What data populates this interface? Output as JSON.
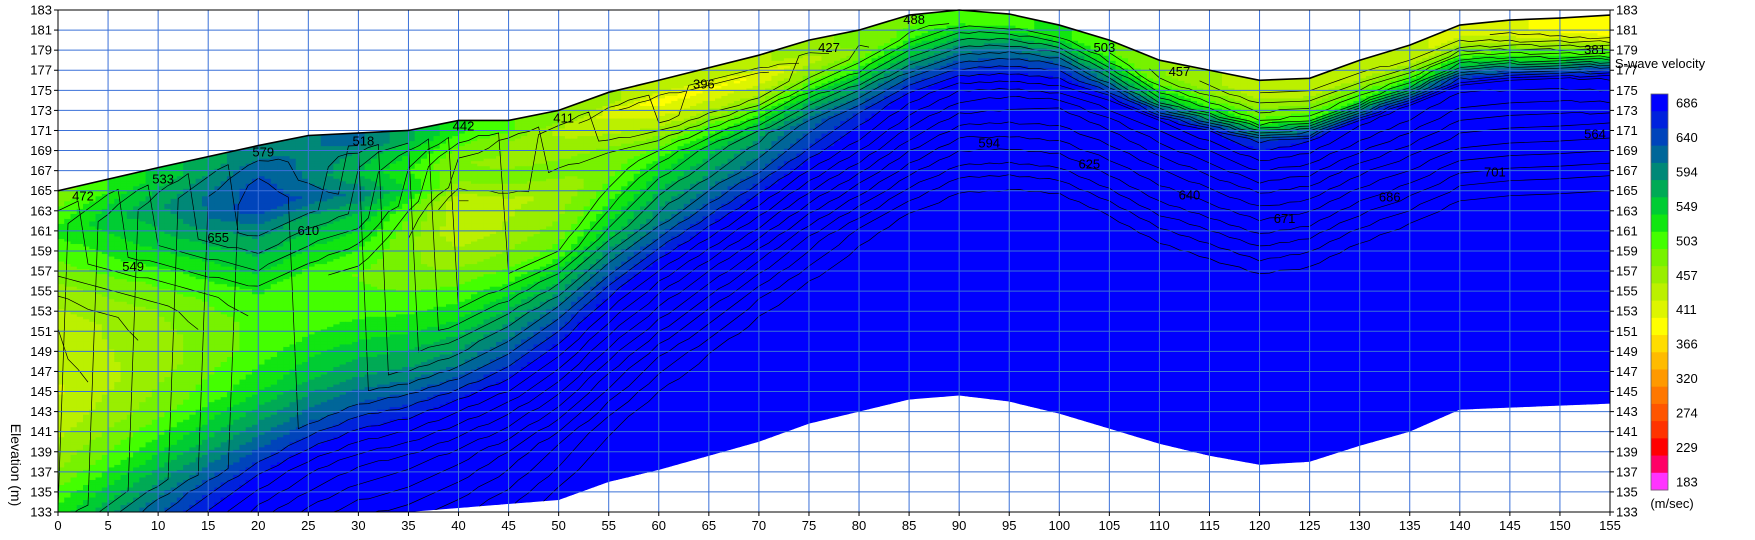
{
  "chart_data": {
    "type": "heatmap",
    "xlabel": "",
    "ylabel": "Elevation (m)",
    "xlim": [
      0,
      155
    ],
    "ylim": [
      133,
      183
    ],
    "x_ticks": [
      0,
      5,
      10,
      15,
      20,
      25,
      30,
      35,
      40,
      45,
      50,
      55,
      60,
      65,
      70,
      75,
      80,
      85,
      90,
      95,
      100,
      105,
      110,
      115,
      120,
      125,
      130,
      135,
      140,
      145,
      150,
      155
    ],
    "y_ticks": [
      133,
      135,
      137,
      139,
      141,
      143,
      145,
      147,
      149,
      151,
      153,
      155,
      157,
      159,
      161,
      163,
      165,
      167,
      169,
      171,
      173,
      175,
      177,
      179,
      181,
      183
    ],
    "grid": true,
    "surface_profile": [
      {
        "x": 0,
        "y": 165
      },
      {
        "x": 10,
        "y": 167.3
      },
      {
        "x": 20,
        "y": 169.5
      },
      {
        "x": 25,
        "y": 170.5
      },
      {
        "x": 35,
        "y": 171
      },
      {
        "x": 40,
        "y": 172
      },
      {
        "x": 45,
        "y": 172
      },
      {
        "x": 50,
        "y": 173
      },
      {
        "x": 55,
        "y": 174.8
      },
      {
        "x": 60,
        "y": 176
      },
      {
        "x": 70,
        "y": 178.5
      },
      {
        "x": 75,
        "y": 180
      },
      {
        "x": 80,
        "y": 181
      },
      {
        "x": 85,
        "y": 182.5
      },
      {
        "x": 90,
        "y": 183
      },
      {
        "x": 95,
        "y": 182.6
      },
      {
        "x": 100,
        "y": 181.5
      },
      {
        "x": 105,
        "y": 180
      },
      {
        "x": 110,
        "y": 178
      },
      {
        "x": 115,
        "y": 177
      },
      {
        "x": 120,
        "y": 176
      },
      {
        "x": 125,
        "y": 176.2
      },
      {
        "x": 130,
        "y": 178
      },
      {
        "x": 135,
        "y": 179.5
      },
      {
        "x": 140,
        "y": 181.5
      },
      {
        "x": 145,
        "y": 182
      },
      {
        "x": 150,
        "y": 182.2
      },
      {
        "x": 155,
        "y": 182.5
      }
    ],
    "bottom_profile": [
      {
        "x": 0,
        "y": 133
      },
      {
        "x": 35,
        "y": 133
      },
      {
        "x": 40,
        "y": 133.4
      },
      {
        "x": 50,
        "y": 134.2
      },
      {
        "x": 55,
        "y": 136
      },
      {
        "x": 60,
        "y": 137.2
      },
      {
        "x": 70,
        "y": 140
      },
      {
        "x": 75,
        "y": 141.8
      },
      {
        "x": 80,
        "y": 143
      },
      {
        "x": 85,
        "y": 144.2
      },
      {
        "x": 90,
        "y": 144.6
      },
      {
        "x": 95,
        "y": 144
      },
      {
        "x": 100,
        "y": 142.8
      },
      {
        "x": 105,
        "y": 141.3
      },
      {
        "x": 110,
        "y": 139.8
      },
      {
        "x": 115,
        "y": 138.6
      },
      {
        "x": 120,
        "y": 137.7
      },
      {
        "x": 125,
        "y": 138
      },
      {
        "x": 130,
        "y": 139.6
      },
      {
        "x": 135,
        "y": 141
      },
      {
        "x": 140,
        "y": 143.2
      },
      {
        "x": 145,
        "y": 143.4
      },
      {
        "x": 150,
        "y": 143.6
      },
      {
        "x": 155,
        "y": 143.8
      }
    ],
    "velocity_field": {
      "x": [
        0,
        10,
        20,
        30,
        40,
        50,
        60,
        70,
        80,
        90,
        100,
        110,
        120,
        130,
        140,
        150,
        155
      ],
      "rows": [
        {
          "z": -1,
          "v": [
            480,
            545,
            600,
            610,
            520,
            470,
            430,
            440,
            480,
            500,
            520,
            470,
            430,
            430,
            420,
            390,
            380
          ]
        },
        {
          "z": -2,
          "v": [
            500,
            560,
            620,
            580,
            500,
            440,
            390,
            400,
            470,
            540,
            560,
            480,
            450,
            450,
            450,
            420,
            400
          ]
        },
        {
          "z": -4,
          "v": [
            520,
            580,
            640,
            560,
            470,
            460,
            430,
            450,
            520,
            600,
            640,
            560,
            500,
            520,
            560,
            530,
            520
          ]
        },
        {
          "z": -6,
          "v": [
            500,
            560,
            650,
            600,
            470,
            480,
            480,
            520,
            590,
            660,
            700,
            700,
            650,
            690,
            710,
            700,
            690
          ]
        },
        {
          "z": -8,
          "v": [
            480,
            540,
            600,
            560,
            430,
            450,
            520,
            580,
            650,
            720,
            760,
            740,
            700,
            720,
            740,
            740,
            730
          ]
        },
        {
          "z": -11,
          "v": [
            450,
            500,
            560,
            520,
            430,
            470,
            560,
            620,
            700,
            780,
            800,
            790,
            760,
            780,
            790,
            790,
            790
          ]
        },
        {
          "z": -14,
          "v": [
            430,
            470,
            520,
            490,
            460,
            500,
            600,
            680,
            760,
            830,
            850,
            830,
            810,
            830,
            840,
            840,
            840
          ]
        },
        {
          "z": -17,
          "v": [
            430,
            460,
            500,
            500,
            500,
            560,
            660,
            740,
            820,
            880,
            900,
            880,
            860,
            880,
            890,
            890,
            890
          ]
        },
        {
          "z": -20,
          "v": [
            420,
            460,
            500,
            530,
            540,
            620,
            720,
            800,
            880,
            920,
            940,
            920,
            910,
            920,
            930,
            930,
            930
          ]
        },
        {
          "z": -24,
          "v": [
            440,
            480,
            530,
            580,
            600,
            690,
            790,
            870,
            920,
            950,
            960,
            950,
            940,
            950,
            960,
            960,
            960
          ]
        },
        {
          "z": -28,
          "v": [
            470,
            530,
            590,
            650,
            680,
            760,
            860,
            920,
            950,
            970,
            980,
            970,
            960,
            970,
            980,
            980,
            980
          ]
        },
        {
          "z": -33,
          "v": [
            540,
            610,
            680,
            740,
            770,
            850,
            920,
            960,
            980,
            990,
            990,
            990,
            990,
            990,
            990,
            990,
            990
          ]
        },
        {
          "z": -40,
          "v": [
            620,
            700,
            780,
            830,
            860,
            920,
            970,
            990,
            1000,
            1000,
            1000,
            1000,
            1000,
            1000,
            1000,
            1000,
            1000
          ]
        }
      ]
    },
    "contour_labels": [
      {
        "text": "472",
        "x": 2.5,
        "y": 164.5
      },
      {
        "text": "533",
        "x": 10.5,
        "y": 166.2
      },
      {
        "text": "579",
        "x": 20.5,
        "y": 168.9
      },
      {
        "text": "518",
        "x": 30.5,
        "y": 170
      },
      {
        "text": "442",
        "x": 40.5,
        "y": 171.5
      },
      {
        "text": "411",
        "x": 50.5,
        "y": 172.3
      },
      {
        "text": "396",
        "x": 64.5,
        "y": 175.7
      },
      {
        "text": "427",
        "x": 77,
        "y": 179.3
      },
      {
        "text": "488",
        "x": 85.5,
        "y": 182.1
      },
      {
        "text": "503",
        "x": 104.5,
        "y": 179.3
      },
      {
        "text": "457",
        "x": 112,
        "y": 176.9
      },
      {
        "text": "381",
        "x": 153.5,
        "y": 179.1
      },
      {
        "text": "564",
        "x": 153.5,
        "y": 170.7
      },
      {
        "text": "594",
        "x": 93,
        "y": 169.8
      },
      {
        "text": "625",
        "x": 103,
        "y": 167.7
      },
      {
        "text": "640",
        "x": 113,
        "y": 164.6
      },
      {
        "text": "671",
        "x": 122.5,
        "y": 162.3
      },
      {
        "text": "686",
        "x": 133,
        "y": 164.4
      },
      {
        "text": "701",
        "x": 143.5,
        "y": 166.9
      },
      {
        "text": "655",
        "x": 16,
        "y": 160.4
      },
      {
        "text": "610",
        "x": 25,
        "y": 161.1
      },
      {
        "text": "549",
        "x": 7.5,
        "y": 157.5
      }
    ]
  },
  "legend": {
    "title": "S-wave velocity",
    "unit": "(m/sec)",
    "entries": [
      {
        "label": "686",
        "color": "#0000ff"
      },
      {
        "label": "",
        "color": "#0022dd"
      },
      {
        "label": "640",
        "color": "#0044bb"
      },
      {
        "label": "",
        "color": "#006699"
      },
      {
        "label": "594",
        "color": "#008877"
      },
      {
        "label": "",
        "color": "#00aa55"
      },
      {
        "label": "549",
        "color": "#00cc33"
      },
      {
        "label": "",
        "color": "#11e611"
      },
      {
        "label": "503",
        "color": "#44ff00"
      },
      {
        "label": "",
        "color": "#77f200"
      },
      {
        "label": "457",
        "color": "#99ee00"
      },
      {
        "label": "",
        "color": "#bbf000"
      },
      {
        "label": "411",
        "color": "#ddf500"
      },
      {
        "label": "",
        "color": "#ffff00"
      },
      {
        "label": "366",
        "color": "#ffdd00"
      },
      {
        "label": "",
        "color": "#ffbb00"
      },
      {
        "label": "320",
        "color": "#ff9900"
      },
      {
        "label": "",
        "color": "#ff7700"
      },
      {
        "label": "274",
        "color": "#ff5500"
      },
      {
        "label": "",
        "color": "#ff3300"
      },
      {
        "label": "229",
        "color": "#ff0000"
      },
      {
        "label": "",
        "color": "#ff0066"
      },
      {
        "label": "183",
        "color": "#ff33ff"
      }
    ]
  }
}
